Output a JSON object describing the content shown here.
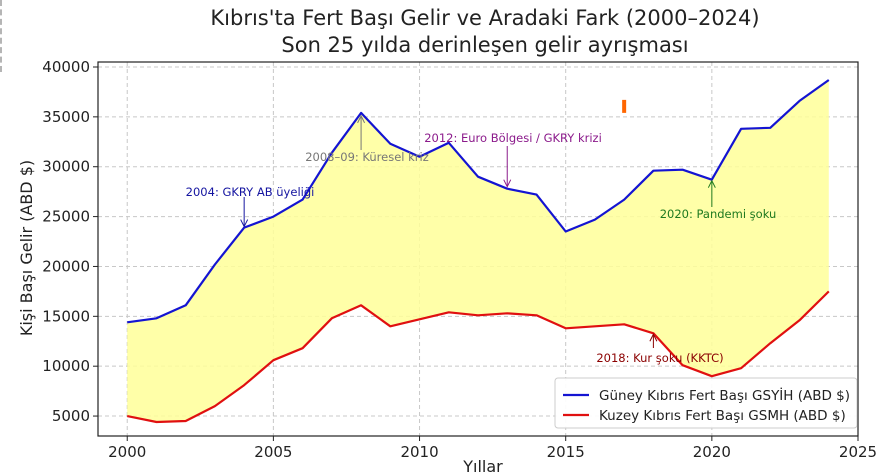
{
  "chart_data": {
    "type": "line",
    "title": "Kıbrıs'ta Fert Başı Gelir ve Aradaki Fark (2000–2024)",
    "subtitle": "Son 25 yılda derinleşen gelir ayrışması",
    "xlabel": "Yıllar",
    "ylabel": "Kişi Başı Gelir (ABD $)",
    "xlim": [
      1999,
      2025
    ],
    "ylim": [
      3000,
      40500
    ],
    "x_ticks": [
      2000,
      2005,
      2010,
      2015,
      2020,
      2025
    ],
    "y_ticks": [
      5000,
      10000,
      15000,
      20000,
      25000,
      30000,
      35000,
      40000
    ],
    "grid": true,
    "legend_position": "bottom-right",
    "fill_between": {
      "color": "#ffff99"
    },
    "x": [
      2000,
      2001,
      2002,
      2003,
      2004,
      2005,
      2006,
      2007,
      2008,
      2009,
      2010,
      2011,
      2012,
      2013,
      2014,
      2015,
      2016,
      2017,
      2018,
      2019,
      2020,
      2021,
      2022,
      2023,
      2024
    ],
    "series": [
      {
        "name": "Güney Kıbrıs Fert Başı GSYİH (ABD $)",
        "color": "#1414d2",
        "values": [
          14400,
          14800,
          16100,
          20200,
          23900,
          25000,
          26700,
          31400,
          35400,
          32300,
          31000,
          32400,
          29000,
          27800,
          27200,
          23500,
          24700,
          26700,
          29600,
          29700,
          28700,
          33800,
          33900,
          36600,
          38700
        ]
      },
      {
        "name": "Kuzey Kıbrıs Fert Başı GSMH (ABD $)",
        "color": "#e01010",
        "values": [
          5000,
          4400,
          4500,
          6000,
          8100,
          10600,
          11800,
          14800,
          16100,
          14000,
          14700,
          15400,
          15100,
          15300,
          15100,
          13800,
          14000,
          14200,
          13300,
          10100,
          9000,
          9800,
          12300,
          14600,
          17500
        ]
      }
    ],
    "annotations": [
      {
        "text": "2004: GKRY AB üyeliği",
        "x": 2004,
        "y": 23900,
        "color": "#1414a0",
        "dir": "down"
      },
      {
        "text": "2008–09: Küresel kriz",
        "x": 2008,
        "y": 35200,
        "color": "#777777",
        "dir": "up"
      },
      {
        "text": "2012: Euro Bölgesi / GKRY krizi",
        "x": 2013,
        "y": 27900,
        "color": "#8b1a8b",
        "dir": "down"
      },
      {
        "text": "2018: Kur şoku (KKTC)",
        "x": 2018,
        "y": 13300,
        "color": "#8b0000",
        "dir": "up"
      },
      {
        "text": "2020: Pandemi şoku",
        "x": 2020,
        "y": 28700,
        "color": "#1f7a1f",
        "dir": "up"
      }
    ],
    "marker": {
      "x": 2017,
      "y": 36000,
      "color": "#ff6600"
    }
  }
}
